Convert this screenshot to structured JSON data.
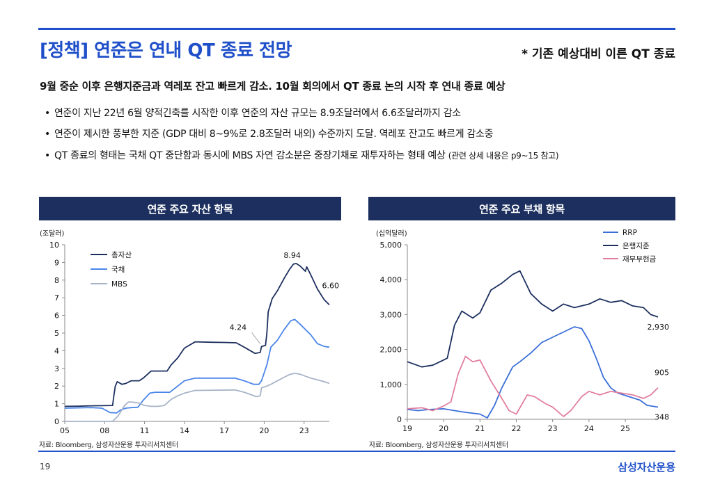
{
  "page": {
    "title": "[정책] 연준은 연내 QT 종료 전망",
    "note": "* 기존 예상대비 이른 QT 종료",
    "headline": "9월 중순 이후 은행지준금과 역레포 잔고 빠르게 감소. 10월 회의에서 QT 종료 논의 시작 후 연내 종료 예상",
    "bullets": [
      {
        "text": "연준이 지난 22년 6월 양적긴축를 시작한 이후 연준의 자산 규모는 8.9조달러에서 6.6조달러까지 감소",
        "small": ""
      },
      {
        "text": "연준이 제시한 풍부한 지준 (GDP 대비 8~9%로 2.8조달러 내외) 수준까지 도달. 역레포 잔고도 빠르게 감소중",
        "small": ""
      },
      {
        "text": "QT 종료의 형태는 국채 QT 중단함과 동시에 MBS 자연 감소분은 중장기채로 재투자하는 형태 예상",
        "small": "(관련 상세 내용은 p9~15 참고)"
      }
    ],
    "page_number": "19",
    "brand": "삼성자산운용"
  },
  "chart_data": [
    {
      "type": "line",
      "title": "연준 주요 자산 항목",
      "ylabel": "(조달러)",
      "source": "자료: Bloomberg, 삼성자산운용 투자리서치센터",
      "xlim": [
        2005,
        2024.9
      ],
      "ylim": [
        0,
        10
      ],
      "yticks": [
        "0",
        "1",
        "2",
        "3",
        "4",
        "5",
        "6",
        "7",
        "8",
        "9",
        "10"
      ],
      "xticks": [
        {
          "value": 2005,
          "label": "05"
        },
        {
          "value": 2008,
          "label": "08"
        },
        {
          "value": 2011,
          "label": "11"
        },
        {
          "value": 2014,
          "label": "14"
        },
        {
          "value": 2017,
          "label": "17"
        },
        {
          "value": 2020,
          "label": "20"
        },
        {
          "value": 2023,
          "label": "23"
        }
      ],
      "series": [
        {
          "name": "총자산",
          "color": "#1c2f5e",
          "points": [
            [
              2005,
              0.85
            ],
            [
              2006,
              0.86
            ],
            [
              2007,
              0.88
            ],
            [
              2008.6,
              0.9
            ],
            [
              2008.7,
              1.5
            ],
            [
              2008.8,
              2.0
            ],
            [
              2008.95,
              2.25
            ],
            [
              2009.3,
              2.1
            ],
            [
              2009.6,
              2.15
            ],
            [
              2010,
              2.3
            ],
            [
              2010.6,
              2.3
            ],
            [
              2010.9,
              2.45
            ],
            [
              2011.5,
              2.85
            ],
            [
              2012,
              2.85
            ],
            [
              2012.7,
              2.85
            ],
            [
              2013,
              3.2
            ],
            [
              2013.5,
              3.6
            ],
            [
              2014,
              4.15
            ],
            [
              2014.8,
              4.5
            ],
            [
              2015,
              4.5
            ],
            [
              2016,
              4.48
            ],
            [
              2017,
              4.47
            ],
            [
              2017.9,
              4.45
            ],
            [
              2018.5,
              4.2
            ],
            [
              2019.3,
              3.85
            ],
            [
              2019.7,
              3.9
            ],
            [
              2019.8,
              4.24
            ],
            [
              2020.1,
              4.3
            ],
            [
              2020.2,
              5.0
            ],
            [
              2020.3,
              6.2
            ],
            [
              2020.6,
              6.95
            ],
            [
              2021,
              7.4
            ],
            [
              2021.5,
              8.1
            ],
            [
              2021.9,
              8.6
            ],
            [
              2022.2,
              8.9
            ],
            [
              2022.4,
              8.94
            ],
            [
              2022.7,
              8.8
            ],
            [
              2023.1,
              8.5
            ],
            [
              2023.2,
              8.75
            ],
            [
              2023.5,
              8.3
            ],
            [
              2024,
              7.5
            ],
            [
              2024.5,
              6.9
            ],
            [
              2024.9,
              6.6
            ]
          ]
        },
        {
          "name": "국채",
          "color": "#4a86e8",
          "points": [
            [
              2005,
              0.75
            ],
            [
              2007,
              0.78
            ],
            [
              2007.8,
              0.75
            ],
            [
              2008.4,
              0.5
            ],
            [
              2008.9,
              0.48
            ],
            [
              2009.2,
              0.65
            ],
            [
              2009.6,
              0.75
            ],
            [
              2010,
              0.78
            ],
            [
              2010.5,
              0.8
            ],
            [
              2010.9,
              1.2
            ],
            [
              2011.4,
              1.6
            ],
            [
              2011.8,
              1.65
            ],
            [
              2012.9,
              1.65
            ],
            [
              2013.5,
              2.0
            ],
            [
              2014,
              2.3
            ],
            [
              2014.8,
              2.45
            ],
            [
              2017.8,
              2.45
            ],
            [
              2018.5,
              2.3
            ],
            [
              2019.2,
              2.1
            ],
            [
              2019.6,
              2.1
            ],
            [
              2019.8,
              2.3
            ],
            [
              2020.2,
              3.2
            ],
            [
              2020.5,
              4.2
            ],
            [
              2021,
              4.6
            ],
            [
              2021.5,
              5.2
            ],
            [
              2022,
              5.7
            ],
            [
              2022.3,
              5.77
            ],
            [
              2022.7,
              5.5
            ],
            [
              2023.5,
              4.9
            ],
            [
              2024,
              4.4
            ],
            [
              2024.5,
              4.25
            ],
            [
              2024.9,
              4.2
            ]
          ]
        },
        {
          "name": "MBS",
          "color": "#a8b3c8",
          "points": [
            [
              2005,
              0
            ],
            [
              2008.6,
              0
            ],
            [
              2009,
              0.3
            ],
            [
              2009.5,
              0.9
            ],
            [
              2009.8,
              1.1
            ],
            [
              2010,
              1.1
            ],
            [
              2010.5,
              1.05
            ],
            [
              2011,
              0.9
            ],
            [
              2011.5,
              0.85
            ],
            [
              2012,
              0.85
            ],
            [
              2012.5,
              0.9
            ],
            [
              2013,
              1.25
            ],
            [
              2013.5,
              1.45
            ],
            [
              2014,
              1.6
            ],
            [
              2014.8,
              1.75
            ],
            [
              2017.8,
              1.78
            ],
            [
              2018.5,
              1.65
            ],
            [
              2019.4,
              1.4
            ],
            [
              2019.7,
              1.45
            ],
            [
              2019.8,
              1.9
            ],
            [
              2020.2,
              2.0
            ],
            [
              2020.5,
              2.1
            ],
            [
              2021,
              2.3
            ],
            [
              2021.5,
              2.5
            ],
            [
              2021.9,
              2.65
            ],
            [
              2022.3,
              2.72
            ],
            [
              2022.7,
              2.67
            ],
            [
              2023.5,
              2.45
            ],
            [
              2024,
              2.35
            ],
            [
              2024.5,
              2.25
            ],
            [
              2024.9,
              2.15
            ]
          ]
        }
      ],
      "annotations": [
        {
          "text": "8.94",
          "x": 2022.3,
          "y": 8.94
        },
        {
          "text": "6.60",
          "x": 2024.9,
          "y": 6.6
        },
        {
          "text": "4.24",
          "x": 2019.8,
          "y": 4.24
        }
      ],
      "legend": "top-left"
    },
    {
      "type": "line",
      "title": "연준 주요 부채 항목",
      "ylabel": "(십억달러)",
      "source": "자료: Bloomberg, 삼성자산운용 투자리서치센터",
      "xlim": [
        2019,
        2025.9
      ],
      "ylim": [
        0,
        5000
      ],
      "yticks": [
        "0",
        "1,000",
        "2,000",
        "3,000",
        "4,000",
        "5,000"
      ],
      "xticks": [
        {
          "value": 2019,
          "label": "19"
        },
        {
          "value": 2020,
          "label": "20"
        },
        {
          "value": 2021,
          "label": "21"
        },
        {
          "value": 2022,
          "label": "22"
        },
        {
          "value": 2023,
          "label": "23"
        },
        {
          "value": 2024,
          "label": "24"
        },
        {
          "value": 2025,
          "label": "25"
        }
      ],
      "series": [
        {
          "name": "RRP",
          "color": "#3a6fd8",
          "points": [
            [
              2019,
              280
            ],
            [
              2019.3,
              250
            ],
            [
              2019.6,
              280
            ],
            [
              2020,
              300
            ],
            [
              2020.3,
              250
            ],
            [
              2020.6,
              200
            ],
            [
              2021,
              150
            ],
            [
              2021.2,
              40
            ],
            [
              2021.4,
              400
            ],
            [
              2021.6,
              900
            ],
            [
              2021.9,
              1500
            ],
            [
              2022.1,
              1650
            ],
            [
              2022.4,
              1900
            ],
            [
              2022.7,
              2200
            ],
            [
              2023,
              2350
            ],
            [
              2023.3,
              2500
            ],
            [
              2023.6,
              2650
            ],
            [
              2023.8,
              2600
            ],
            [
              2024,
              2250
            ],
            [
              2024.2,
              1750
            ],
            [
              2024.4,
              1200
            ],
            [
              2024.6,
              900
            ],
            [
              2024.8,
              750
            ],
            [
              2025.1,
              650
            ],
            [
              2025.4,
              550
            ],
            [
              2025.6,
              400
            ],
            [
              2025.9,
              348
            ]
          ]
        },
        {
          "name": "은행지준",
          "color": "#1c2f5e",
          "points": [
            [
              2019,
              1650
            ],
            [
              2019.4,
              1500
            ],
            [
              2019.7,
              1550
            ],
            [
              2020.0,
              1700
            ],
            [
              2020.1,
              1750
            ],
            [
              2020.3,
              2700
            ],
            [
              2020.5,
              3100
            ],
            [
              2020.8,
              2900
            ],
            [
              2021,
              3050
            ],
            [
              2021.3,
              3700
            ],
            [
              2021.6,
              3900
            ],
            [
              2021.9,
              4150
            ],
            [
              2022.1,
              4250
            ],
            [
              2022.4,
              3600
            ],
            [
              2022.7,
              3300
            ],
            [
              2023,
              3100
            ],
            [
              2023.3,
              3300
            ],
            [
              2023.6,
              3200
            ],
            [
              2024,
              3300
            ],
            [
              2024.3,
              3450
            ],
            [
              2024.6,
              3350
            ],
            [
              2024.9,
              3400
            ],
            [
              2025.2,
              3250
            ],
            [
              2025.5,
              3200
            ],
            [
              2025.7,
              3000
            ],
            [
              2025.9,
              2930
            ]
          ]
        },
        {
          "name": "재무부현금",
          "color": "#e27f9e",
          "points": [
            [
              2019,
              300
            ],
            [
              2019.4,
              330
            ],
            [
              2019.7,
              250
            ],
            [
              2020,
              380
            ],
            [
              2020.2,
              500
            ],
            [
              2020.4,
              1300
            ],
            [
              2020.6,
              1800
            ],
            [
              2020.8,
              1650
            ],
            [
              2021,
              1700
            ],
            [
              2021.3,
              1100
            ],
            [
              2021.6,
              600
            ],
            [
              2021.8,
              250
            ],
            [
              2022,
              150
            ],
            [
              2022.3,
              700
            ],
            [
              2022.5,
              650
            ],
            [
              2022.8,
              450
            ],
            [
              2023,
              350
            ],
            [
              2023.3,
              80
            ],
            [
              2023.5,
              250
            ],
            [
              2023.8,
              650
            ],
            [
              2024,
              800
            ],
            [
              2024.3,
              700
            ],
            [
              2024.6,
              800
            ],
            [
              2024.9,
              750
            ],
            [
              2025.2,
              700
            ],
            [
              2025.5,
              600
            ],
            [
              2025.7,
              700
            ],
            [
              2025.9,
              905
            ]
          ]
        }
      ],
      "annotations": [
        {
          "text": "2,930",
          "x": 2025.9,
          "y": 2930
        },
        {
          "text": "905",
          "x": 2025.9,
          "y": 905
        },
        {
          "text": "348",
          "x": 2025.9,
          "y": 348
        }
      ],
      "legend": "top-right"
    }
  ]
}
